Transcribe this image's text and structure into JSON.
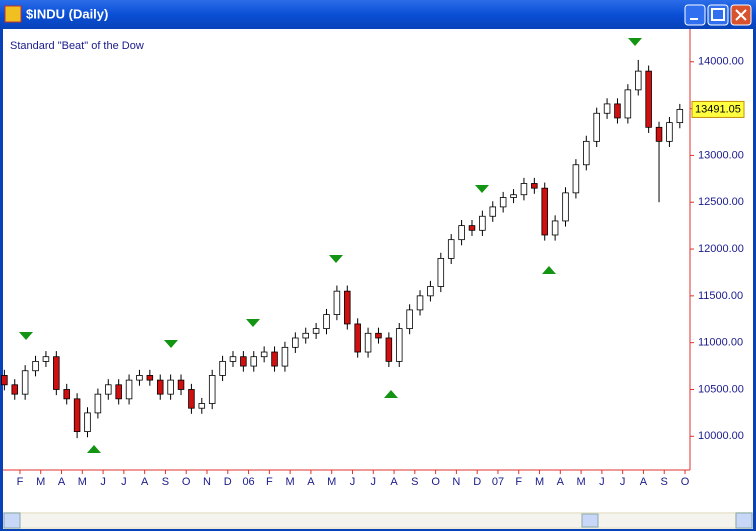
{
  "window_title": "$INDU (Daily)",
  "chart_data": {
    "type": "candlestick",
    "annotation": "Standard \"Beat\" of the Dow",
    "x": [
      0.25,
      0.75,
      1.25,
      1.75,
      2.25,
      2.75,
      3.25,
      3.75,
      4.25,
      4.75,
      5.25,
      5.75,
      6.25,
      6.75,
      7.25,
      7.75,
      8.25,
      8.75,
      9.25,
      9.75,
      10.25,
      10.75,
      11.25,
      11.75,
      12.25,
      12.75,
      13.25,
      13.75,
      14.25,
      14.75,
      15.25,
      15.75,
      16.25,
      16.75,
      17.25,
      17.75,
      18.25,
      18.75,
      19.25,
      19.75,
      20.25,
      20.75,
      21.25,
      21.75,
      22.25,
      22.75,
      23.25,
      23.75,
      24.25,
      24.75,
      25.25,
      25.75,
      26.25,
      26.75,
      27.25,
      27.75,
      28.25,
      28.75,
      29.25,
      29.75,
      30.25,
      30.75,
      31.25,
      31.75,
      32.25,
      32.75
    ],
    "open": [
      10650,
      10550,
      10450,
      10700,
      10800,
      10850,
      10500,
      10400,
      10050,
      10250,
      10450,
      10550,
      10400,
      10600,
      10650,
      10600,
      10450,
      10600,
      10500,
      10300,
      10350,
      10650,
      10800,
      10850,
      10750,
      10850,
      10900,
      10750,
      10950,
      11050,
      11100,
      11150,
      11300,
      11550,
      11200,
      10900,
      11100,
      11050,
      10800,
      11150,
      11350,
      11500,
      11600,
      11900,
      12100,
      12250,
      12200,
      12350,
      12450,
      12550,
      12580,
      12700,
      12650,
      12150,
      12300,
      12600,
      12900,
      13150,
      13450,
      13550,
      13400,
      13700,
      13900,
      13300,
      13150,
      13350
    ],
    "high": [
      10710,
      10610,
      10760,
      10860,
      10910,
      10910,
      10560,
      10460,
      10310,
      10510,
      10610,
      10610,
      10660,
      10710,
      10710,
      10660,
      10660,
      10660,
      10560,
      10410,
      10710,
      10860,
      10910,
      10910,
      10910,
      10960,
      10960,
      11010,
      11110,
      11160,
      11210,
      11360,
      11610,
      11610,
      11260,
      11160,
      11160,
      11110,
      11210,
      11410,
      11560,
      11660,
      11960,
      12160,
      12310,
      12310,
      12410,
      12510,
      12610,
      12640,
      12760,
      12760,
      12710,
      12360,
      12660,
      12960,
      13210,
      13510,
      13610,
      13610,
      13760,
      14020,
      13960,
      13360,
      13410,
      13550
    ],
    "low": [
      10490,
      10390,
      10390,
      10640,
      10740,
      10440,
      10340,
      9980,
      9990,
      10190,
      10390,
      10340,
      10340,
      10540,
      10540,
      10390,
      10390,
      10440,
      10240,
      10240,
      10290,
      10590,
      10740,
      10690,
      10690,
      10790,
      10690,
      10690,
      10890,
      10990,
      11040,
      11090,
      11240,
      11140,
      10840,
      10840,
      10990,
      10740,
      10740,
      11090,
      11290,
      11440,
      11540,
      11840,
      12040,
      12140,
      12140,
      12290,
      12390,
      12490,
      12520,
      12590,
      12090,
      12090,
      12240,
      12540,
      12840,
      13090,
      13390,
      13340,
      13340,
      13640,
      13240,
      12500,
      13090,
      13290
    ],
    "close": [
      10550,
      10450,
      10700,
      10800,
      10850,
      10500,
      10400,
      10050,
      10250,
      10450,
      10550,
      10400,
      10600,
      10650,
      10600,
      10450,
      10600,
      10500,
      10300,
      10350,
      10650,
      10800,
      10850,
      10750,
      10850,
      10900,
      10750,
      10950,
      11050,
      11100,
      11150,
      11300,
      11550,
      11200,
      10900,
      11100,
      11050,
      10800,
      11150,
      11350,
      11500,
      11600,
      11900,
      12100,
      12250,
      12200,
      12350,
      12450,
      12550,
      12580,
      12700,
      12650,
      12150,
      12300,
      12600,
      12900,
      13150,
      13450,
      13550,
      13400,
      13700,
      13900,
      13300,
      13150,
      13350,
      13491.05
    ],
    "up_color": "#ffffff",
    "down_color": "#d01010",
    "xlim": [
      0.04,
      33.24
    ],
    "xticks": [
      {
        "value": 1,
        "label": "F"
      },
      {
        "value": 2,
        "label": "M"
      },
      {
        "value": 3,
        "label": "A"
      },
      {
        "value": 4,
        "label": "M"
      },
      {
        "value": 5,
        "label": "J"
      },
      {
        "value": 6,
        "label": "J"
      },
      {
        "value": 7,
        "label": "A"
      },
      {
        "value": 8,
        "label": "S"
      },
      {
        "value": 9,
        "label": "O"
      },
      {
        "value": 10,
        "label": "N"
      },
      {
        "value": 11,
        "label": "D"
      },
      {
        "value": 12,
        "label": "06"
      },
      {
        "value": 13,
        "label": "F"
      },
      {
        "value": 14,
        "label": "M"
      },
      {
        "value": 15,
        "label": "A"
      },
      {
        "value": 16,
        "label": "M"
      },
      {
        "value": 17,
        "label": "J"
      },
      {
        "value": 18,
        "label": "J"
      },
      {
        "value": 19,
        "label": "A"
      },
      {
        "value": 20,
        "label": "S"
      },
      {
        "value": 21,
        "label": "O"
      },
      {
        "value": 22,
        "label": "N"
      },
      {
        "value": 23,
        "label": "D"
      },
      {
        "value": 24,
        "label": "07"
      },
      {
        "value": 25,
        "label": "F"
      },
      {
        "value": 26,
        "label": "M"
      },
      {
        "value": 27,
        "label": "A"
      },
      {
        "value": 28,
        "label": "M"
      },
      {
        "value": 29,
        "label": "J"
      },
      {
        "value": 30,
        "label": "J"
      },
      {
        "value": 31,
        "label": "A"
      },
      {
        "value": 32,
        "label": "S"
      },
      {
        "value": 33,
        "label": "O"
      }
    ],
    "ylim": [
      9640,
      14350
    ],
    "yticks": [
      {
        "value": 10000,
        "label": "10000.00"
      },
      {
        "value": 10500,
        "label": "10500.00"
      },
      {
        "value": 11000,
        "label": "11000.00"
      },
      {
        "value": 11500,
        "label": "11500.00"
      },
      {
        "value": 12000,
        "label": "12000.00"
      },
      {
        "value": 12500,
        "label": "12500.00"
      },
      {
        "value": 13000,
        "label": "13000.00"
      },
      {
        "value": 13500,
        "label": "13500.00"
      },
      {
        "value": 14000,
        "label": "14000.00"
      }
    ]
  }
}
